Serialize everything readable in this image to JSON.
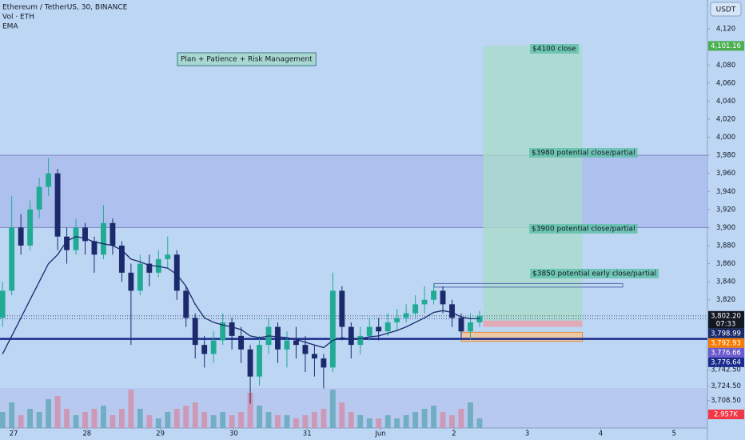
{
  "chart_data": {
    "type": "candlestick",
    "title": "Ethereum / TetherUS, 30, BINANCE",
    "axis_unit": "USDT",
    "up_color": "#22ab94",
    "down_color": "#1c2a6b",
    "x": [
      26.85,
      26.975,
      27.1,
      27.225,
      27.35,
      27.475,
      27.6,
      27.725,
      27.85,
      27.975,
      28.1,
      28.225,
      28.35,
      28.475,
      28.6,
      28.725,
      28.85,
      28.975,
      29.1,
      29.225,
      29.35,
      29.475,
      29.6,
      29.725,
      29.85,
      29.975,
      30.1,
      30.225,
      30.35,
      30.475,
      30.6,
      30.725,
      30.85,
      30.975,
      31.1,
      31.225,
      31.35,
      31.475,
      31.6,
      31.725,
      31.85,
      31.975,
      32.1,
      32.225,
      32.35,
      32.475,
      32.6,
      32.725,
      32.85,
      32.975,
      33.1,
      33.225,
      33.35
    ],
    "open": [
      3800,
      3830,
      3900,
      3880,
      3920,
      3945,
      3960,
      3890,
      3875,
      3900,
      3885,
      3870,
      3905,
      3880,
      3850,
      3830,
      3860,
      3850,
      3865,
      3870,
      3830,
      3800,
      3770,
      3760,
      3775,
      3795,
      3780,
      3765,
      3735,
      3770,
      3790,
      3765,
      3775,
      3770,
      3760,
      3755,
      3745,
      3830,
      3790,
      3770,
      3780,
      3790,
      3785,
      3795,
      3800,
      3805,
      3815,
      3820,
      3830,
      3815,
      3800,
      3785,
      3795
    ],
    "high": [
      3840,
      3935,
      3915,
      3930,
      3955,
      3977,
      3965,
      3900,
      3910,
      3905,
      3890,
      3925,
      3910,
      3885,
      3860,
      3870,
      3870,
      3875,
      3890,
      3875,
      3835,
      3805,
      3780,
      3785,
      3805,
      3800,
      3790,
      3770,
      3780,
      3800,
      3795,
      3785,
      3790,
      3780,
      3770,
      3760,
      3850,
      3835,
      3795,
      3790,
      3800,
      3800,
      3805,
      3810,
      3815,
      3825,
      3835,
      3838,
      3835,
      3820,
      3805,
      3805,
      3808
    ],
    "low": [
      3790,
      3825,
      3870,
      3875,
      3910,
      3935,
      3875,
      3860,
      3870,
      3870,
      3850,
      3865,
      3870,
      3840,
      3770,
      3825,
      3835,
      3845,
      3855,
      3820,
      3790,
      3755,
      3745,
      3750,
      3770,
      3765,
      3750,
      3705,
      3725,
      3760,
      3750,
      3745,
      3755,
      3740,
      3735,
      3722,
      3740,
      3775,
      3755,
      3760,
      3775,
      3775,
      3780,
      3785,
      3795,
      3800,
      3805,
      3815,
      3805,
      3790,
      3778,
      3776,
      3790
    ],
    "close": [
      3830,
      3900,
      3880,
      3920,
      3945,
      3960,
      3890,
      3875,
      3900,
      3885,
      3870,
      3905,
      3880,
      3850,
      3830,
      3860,
      3850,
      3865,
      3870,
      3830,
      3800,
      3770,
      3760,
      3775,
      3795,
      3780,
      3765,
      3735,
      3770,
      3790,
      3765,
      3775,
      3770,
      3760,
      3755,
      3745,
      3830,
      3790,
      3770,
      3780,
      3790,
      3785,
      3795,
      3800,
      3805,
      3815,
      3820,
      3830,
      3815,
      3800,
      3785,
      3795,
      3802.2
    ],
    "series": [
      {
        "name": "EMA",
        "color": "#1a2a6c",
        "values": [
          3760,
          3780,
          3800,
          3820,
          3840,
          3860,
          3870,
          3885,
          3890,
          3888,
          3884,
          3882,
          3880,
          3875,
          3865,
          3862,
          3858,
          3857,
          3855,
          3848,
          3835,
          3815,
          3800,
          3795,
          3792,
          3790,
          3787,
          3780,
          3778,
          3780,
          3779,
          3778,
          3776,
          3773,
          3770,
          3767,
          3775,
          3778,
          3776,
          3777,
          3779,
          3780,
          3783,
          3786,
          3790,
          3795,
          3800,
          3806,
          3808,
          3806,
          3801,
          3799,
          3798.99
        ]
      }
    ],
    "volume": {
      "name": "Vol · ETH",
      "up_color": "#5fa8b8",
      "down_color": "#d18fa8",
      "values": [
        5,
        8,
        4,
        6,
        5,
        9,
        10,
        6,
        4,
        5,
        6,
        7,
        4,
        6,
        12,
        6,
        4,
        3,
        5,
        6,
        7,
        8,
        5,
        4,
        5,
        4,
        5,
        11,
        7,
        5,
        4,
        4,
        3,
        4,
        5,
        6,
        12,
        8,
        5,
        4,
        3,
        3,
        4,
        3,
        4,
        5,
        6,
        7,
        5,
        4,
        6,
        8,
        3
      ]
    },
    "xlim": [
      26.815,
      36.455
    ],
    "ylim": [
      3678,
      4152
    ],
    "xticks": [
      27,
      28,
      29,
      30,
      31,
      {
        "value": 32,
        "label": "Jun"
      },
      {
        "value": 33,
        "label": "2"
      },
      {
        "value": 34,
        "label": "3"
      },
      {
        "value": 35,
        "label": "4"
      },
      {
        "value": 36,
        "label": "5"
      }
    ],
    "yticks": [
      {
        "value": 4120,
        "label": "4,120"
      },
      {
        "value": 4080,
        "label": "4,080"
      },
      {
        "value": 4060,
        "label": "4,060"
      },
      {
        "value": 4040,
        "label": "4,040"
      },
      {
        "value": 4020,
        "label": "4,020"
      },
      {
        "value": 4000,
        "label": "4,000"
      },
      {
        "value": 3980,
        "label": "3,980"
      },
      {
        "value": 3960,
        "label": "3,960"
      },
      {
        "value": 3940,
        "label": "3,940"
      },
      {
        "value": 3920,
        "label": "3,920"
      },
      {
        "value": 3900,
        "label": "3,900"
      },
      {
        "value": 3880,
        "label": "3,880"
      },
      {
        "value": 3860,
        "label": "3,860"
      },
      {
        "value": 3840,
        "label": "3,840"
      },
      {
        "value": 3820,
        "label": "3,820"
      },
      {
        "value": 3742.5,
        "label": "3,742.50"
      },
      {
        "value": 3724.5,
        "label": "3,724.50"
      },
      {
        "value": 3708.5,
        "label": "3,708.50"
      }
    ],
    "zone": {
      "low": 3900,
      "high": 3980,
      "color": "#a9b8ec"
    },
    "long_position": {
      "x_start": 33.4,
      "x_end": 34.75,
      "entry": 3797,
      "stop": 3790,
      "target": 4101.16
    },
    "orange_box": {
      "x_start": 33.1,
      "x_end": 34.75,
      "low": 3774,
      "high": 3784
    },
    "resistance_box": {
      "x_start": 32.73,
      "x_end": 35.3,
      "low": 3834,
      "high": 3838
    },
    "annotations": [
      "$4100 close",
      "$3980 potential close/partial",
      "$3900 potential close/partial",
      "$3850 potential early close/partial"
    ],
    "headline": "Plan + Patience + Risk Management",
    "price_labels": [
      {
        "value": 4101.16,
        "label": "4,101.16",
        "color": "#4caf50"
      },
      {
        "value": 3802.2,
        "label": "3,802.20",
        "color": "#131722",
        "countdown": "07:33",
        "line": "dotted"
      },
      {
        "value": 3798.99,
        "label": "3,798.99",
        "color": "#1a2a6c",
        "line": "dotted"
      },
      {
        "value": 3792.93,
        "label": "3,792.93",
        "color": "#f57c00"
      },
      {
        "value": 3776.66,
        "label": "3,776.66",
        "color": "#6a5acd"
      },
      {
        "value": 3776.64,
        "label": "3,776.64",
        "color": "#1a2a8c",
        "line": "thick"
      }
    ],
    "volume_label": {
      "value": 2.957,
      "label": "2.957K",
      "color": "#f23645"
    }
  }
}
